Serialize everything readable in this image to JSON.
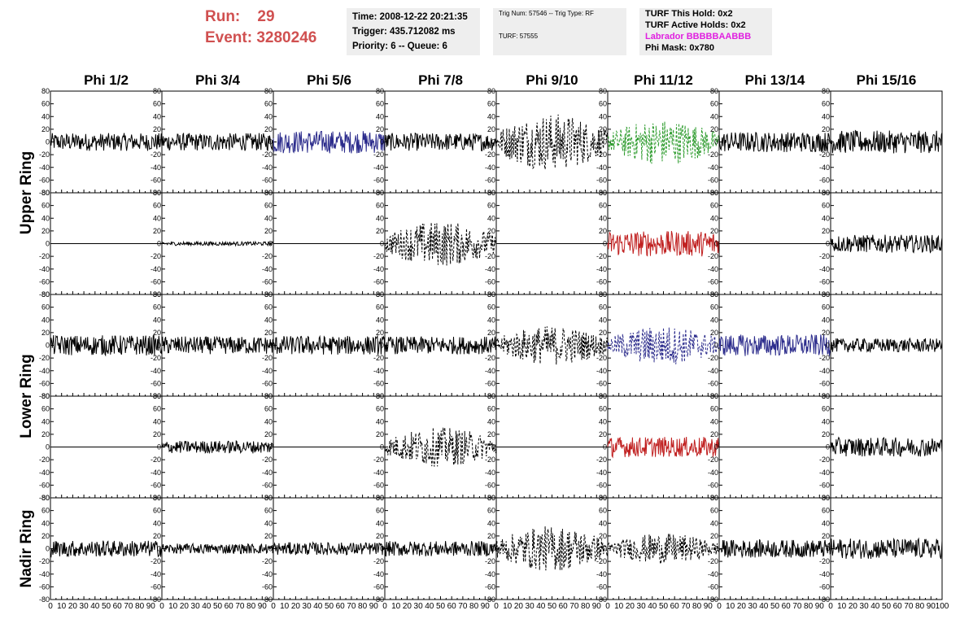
{
  "header": {
    "run_label": "Run:",
    "run_value": "29",
    "event_label": "Event:",
    "event_value": "3280246"
  },
  "info_time": {
    "time": "Time: 2008-12-22 20:21:35",
    "trigger": "Trigger: 435.712082 ms",
    "priority": "Priority: 6 -- Queue: 6"
  },
  "info_trig": {
    "trig": "Trig Num: 57546 -- Trig Type: RF",
    "turf": "TURF: 57555"
  },
  "info_turf": {
    "this_hold": "TURF This Hold: 0x2",
    "active_holds": "TURF Active Holds: 0x2",
    "labrador": "Labrador BBBBBAABBB",
    "phi_mask": "Phi Mask: 0x780",
    "labrador_color": "#e020e0"
  },
  "chart_data": {
    "type": "line",
    "columns": [
      "Phi 1/2",
      "Phi 3/4",
      "Phi 5/6",
      "Phi 7/8",
      "Phi 9/10",
      "Phi 11/12",
      "Phi 13/14",
      "Phi 15/16"
    ],
    "ring_labels": [
      "Upper Ring",
      "Lower Ring",
      "Nadir Ring"
    ],
    "y_ticks": [
      80,
      60,
      40,
      20,
      0,
      -20,
      -40,
      -60,
      -80
    ],
    "x_ticks": [
      0,
      10,
      20,
      30,
      40,
      50,
      60,
      70,
      80,
      90,
      100
    ],
    "xlim": [
      0,
      100
    ],
    "ylim": [
      -80,
      80
    ],
    "rows": [
      {
        "ring": "Upper Ring",
        "panels": [
          {
            "style": "solid",
            "color": "#000000",
            "amplitude": 14
          },
          {
            "style": "solid",
            "color": "#000000",
            "amplitude": 14
          },
          {
            "style": "solid",
            "color": "#2c2c8c",
            "amplitude": 18
          },
          {
            "style": "solid",
            "color": "#000000",
            "amplitude": 14
          },
          {
            "style": "dashed",
            "color": "#000000",
            "amplitude": 38
          },
          {
            "style": "dashed",
            "color": "#2a9a2a",
            "amplitude": 30
          },
          {
            "style": "solid",
            "color": "#000000",
            "amplitude": 16
          },
          {
            "style": "solid",
            "color": "#000000",
            "amplitude": 18
          }
        ]
      },
      {
        "ring": "Upper Ring",
        "panels": [
          {
            "style": "flat",
            "color": "#000000",
            "amplitude": 0
          },
          {
            "style": "solid",
            "color": "#000000",
            "amplitude": 3
          },
          {
            "style": "flat",
            "color": "#000000",
            "amplitude": 0
          },
          {
            "style": "dashed",
            "color": "#000000",
            "amplitude": 30
          },
          {
            "style": "flat",
            "color": "#000000",
            "amplitude": 0
          },
          {
            "style": "solid",
            "color": "#c02020",
            "amplitude": 20
          },
          {
            "style": "flat",
            "color": "#000000",
            "amplitude": 0
          },
          {
            "style": "solid",
            "color": "#000000",
            "amplitude": 14
          }
        ]
      },
      {
        "ring": "Lower Ring",
        "panels": [
          {
            "style": "solid",
            "color": "#000000",
            "amplitude": 16
          },
          {
            "style": "solid",
            "color": "#000000",
            "amplitude": 14
          },
          {
            "style": "solid",
            "color": "#000000",
            "amplitude": 15
          },
          {
            "style": "solid",
            "color": "#000000",
            "amplitude": 14
          },
          {
            "style": "dashed",
            "color": "#000000",
            "amplitude": 26
          },
          {
            "style": "dashed",
            "color": "#2c2c8c",
            "amplitude": 26
          },
          {
            "style": "solid",
            "color": "#2c2c8c",
            "amplitude": 17
          },
          {
            "style": "solid",
            "color": "#000000",
            "amplitude": 11
          }
        ]
      },
      {
        "ring": "Lower Ring",
        "panels": [
          {
            "style": "flat",
            "color": "#000000",
            "amplitude": 0
          },
          {
            "style": "solid",
            "color": "#000000",
            "amplitude": 10
          },
          {
            "style": "flat",
            "color": "#000000",
            "amplitude": 0
          },
          {
            "style": "dashed",
            "color": "#000000",
            "amplitude": 26
          },
          {
            "style": "flat",
            "color": "#000000",
            "amplitude": 0
          },
          {
            "style": "solid",
            "color": "#c02020",
            "amplitude": 16
          },
          {
            "style": "flat",
            "color": "#000000",
            "amplitude": 0
          },
          {
            "style": "solid",
            "color": "#000000",
            "amplitude": 15
          }
        ]
      },
      {
        "ring": "Nadir Ring",
        "panels": [
          {
            "style": "solid",
            "color": "#000000",
            "amplitude": 13
          },
          {
            "style": "solid",
            "color": "#000000",
            "amplitude": 8
          },
          {
            "style": "solid",
            "color": "#000000",
            "amplitude": 10
          },
          {
            "style": "solid",
            "color": "#000000",
            "amplitude": 12
          },
          {
            "style": "dashed",
            "color": "#000000",
            "amplitude": 30
          },
          {
            "style": "dashed",
            "color": "#000000",
            "amplitude": 20
          },
          {
            "style": "solid",
            "color": "#000000",
            "amplitude": 14
          },
          {
            "style": "solid",
            "color": "#000000",
            "amplitude": 16
          }
        ]
      }
    ]
  }
}
